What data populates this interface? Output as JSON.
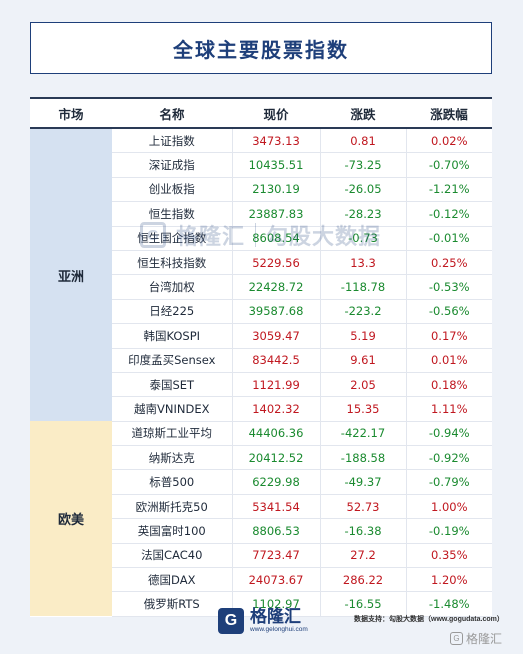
{
  "title": "全球主要股票指数",
  "columns": [
    "市场",
    "名称",
    "现价",
    "涨跌",
    "涨跌幅"
  ],
  "groups": [
    {
      "market": "亚洲",
      "rows": [
        {
          "name": "上证指数",
          "price": "3473.13",
          "change": "0.81",
          "pct": "0.02%",
          "dir": "up"
        },
        {
          "name": "深证成指",
          "price": "10435.51",
          "change": "-73.25",
          "pct": "-0.70%",
          "dir": "down"
        },
        {
          "name": "创业板指",
          "price": "2130.19",
          "change": "-26.05",
          "pct": "-1.21%",
          "dir": "down"
        },
        {
          "name": "恒生指数",
          "price": "23887.83",
          "change": "-28.23",
          "pct": "-0.12%",
          "dir": "down"
        },
        {
          "name": "恒生国企指数",
          "price": "8608.54",
          "change": "-0.73",
          "pct": "-0.01%",
          "dir": "down"
        },
        {
          "name": "恒生科技指数",
          "price": "5229.56",
          "change": "13.3",
          "pct": "0.25%",
          "dir": "up"
        },
        {
          "name": "台湾加权",
          "price": "22428.72",
          "change": "-118.78",
          "pct": "-0.53%",
          "dir": "down"
        },
        {
          "name": "日经225",
          "price": "39587.68",
          "change": "-223.2",
          "pct": "-0.56%",
          "dir": "down"
        },
        {
          "name": "韩国KOSPI",
          "price": "3059.47",
          "change": "5.19",
          "pct": "0.17%",
          "dir": "up"
        },
        {
          "name": "印度孟买Sensex",
          "price": "83442.5",
          "change": "9.61",
          "pct": "0.01%",
          "dir": "up"
        },
        {
          "name": "泰国SET",
          "price": "1121.99",
          "change": "2.05",
          "pct": "0.18%",
          "dir": "up"
        },
        {
          "name": "越南VNINDEX",
          "price": "1402.32",
          "change": "15.35",
          "pct": "1.11%",
          "dir": "up"
        }
      ]
    },
    {
      "market": "欧美",
      "rows": [
        {
          "name": "道琼斯工业平均",
          "price": "44406.36",
          "change": "-422.17",
          "pct": "-0.94%",
          "dir": "down"
        },
        {
          "name": "纳斯达克",
          "price": "20412.52",
          "change": "-188.58",
          "pct": "-0.92%",
          "dir": "down"
        },
        {
          "name": "标普500",
          "price": "6229.98",
          "change": "-49.37",
          "pct": "-0.79%",
          "dir": "down"
        },
        {
          "name": "欧洲斯托克50",
          "price": "5341.54",
          "change": "52.73",
          "pct": "1.00%",
          "dir": "up"
        },
        {
          "name": "英国富时100",
          "price": "8806.53",
          "change": "-16.38",
          "pct": "-0.19%",
          "dir": "down"
        },
        {
          "name": "法国CAC40",
          "price": "7723.47",
          "change": "27.2",
          "pct": "0.35%",
          "dir": "up"
        },
        {
          "name": "德国DAX",
          "price": "24073.67",
          "change": "286.22",
          "pct": "1.20%",
          "dir": "up"
        },
        {
          "name": "俄罗斯RTS",
          "price": "1102.97",
          "change": "-16.55",
          "pct": "-1.48%",
          "dir": "down"
        }
      ]
    }
  ],
  "watermark": {
    "brand": "格隆汇",
    "partner": "勾股大数据",
    "logo_letter": "G"
  },
  "footer": {
    "logo_letter": "G",
    "brand": "格隆汇",
    "url": "www.gelonghui.com",
    "source": "数据支持：勾股大数据（www.gogudata.com）",
    "corner": "格隆汇"
  },
  "colors": {
    "up": "#c0171f",
    "down": "#1a8a2f",
    "asia_bg": "#d5e1f1",
    "euam_bg": "#faecc6",
    "brand": "#1e3f7a"
  }
}
